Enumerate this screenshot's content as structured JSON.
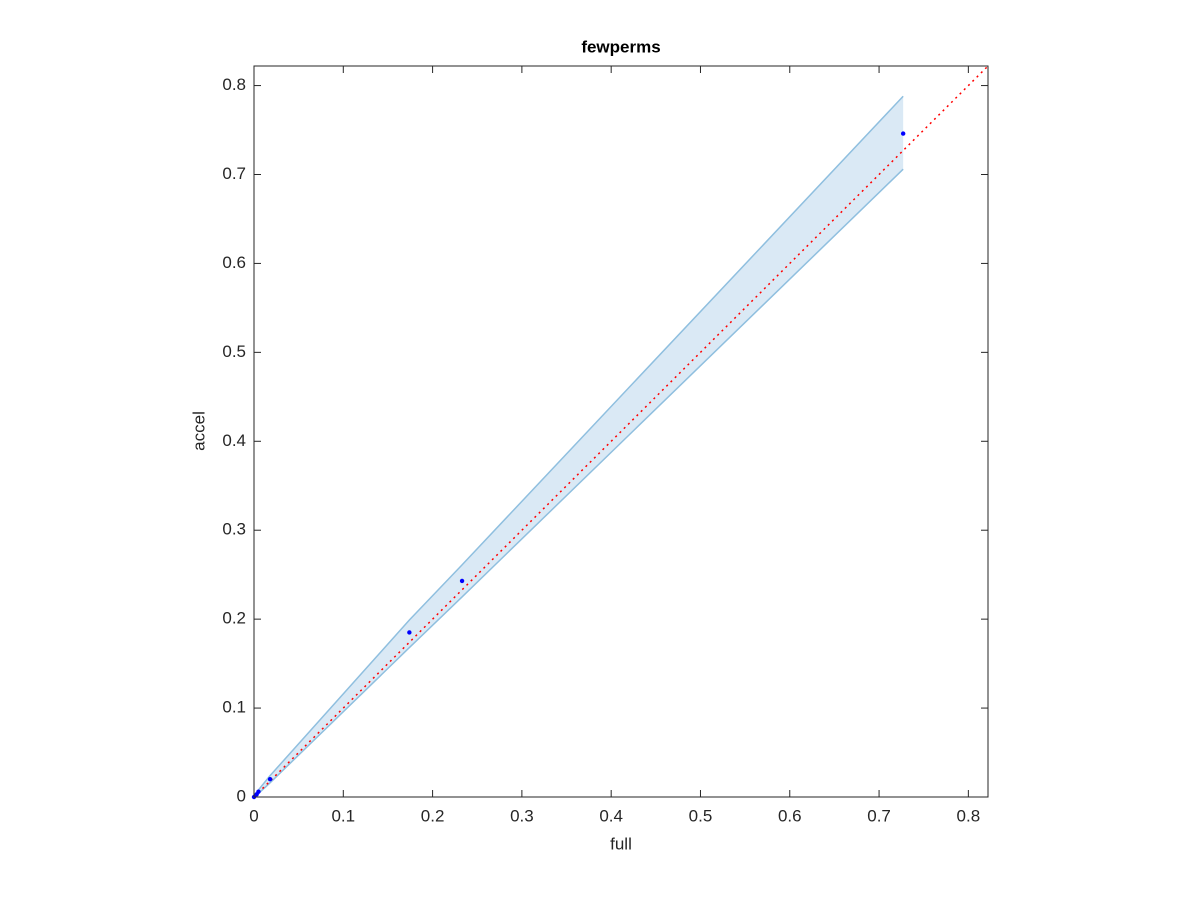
{
  "chart_data": {
    "type": "scatter",
    "title": "fewperms",
    "x_label": "full",
    "y_label": "accel",
    "x": [
      0,
      0.003,
      0.005,
      0.018,
      0.174,
      0.233,
      0.727
    ],
    "values": [
      0,
      0.003,
      0.006,
      0.02,
      0.185,
      0.243,
      0.746
    ],
    "color": "#0000ff",
    "band": {
      "lower": [
        0,
        0.003,
        0.004,
        0.016,
        0.168,
        0.225,
        0.706
      ],
      "upper": [
        0,
        0.004,
        0.008,
        0.024,
        0.199,
        0.261,
        0.788
      ],
      "color": "#8fbfdf",
      "fill": "#dae9f5"
    },
    "reference_line": {
      "x": [
        0,
        0.822
      ],
      "values": [
        0,
        0.822
      ],
      "color": "#ff0000"
    },
    "xlim": [
      0,
      0.822
    ],
    "ylim": [
      0,
      0.822
    ],
    "xticks": [
      0,
      0.1,
      0.2,
      0.3,
      0.4,
      0.5,
      0.6,
      0.7,
      0.8
    ],
    "yticks": [
      0,
      0.1,
      0.2,
      0.3,
      0.4,
      0.5,
      0.6,
      0.7,
      0.8
    ]
  }
}
